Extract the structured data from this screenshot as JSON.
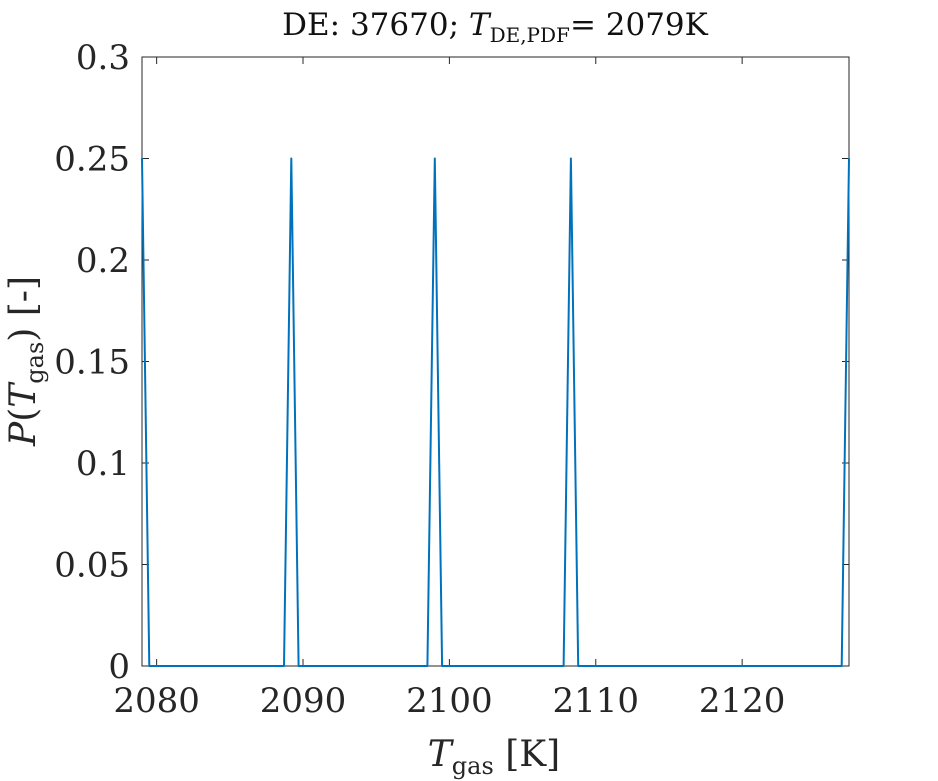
{
  "chart_data": {
    "type": "line",
    "title": {
      "prefix": "DE: 37670; ",
      "var": "T",
      "var_sub": "DE,PDF",
      "suffix": "= 2079K"
    },
    "xlabel": {
      "var": "T",
      "sub": "gas",
      "unit": " [K]"
    },
    "ylabel": {
      "func": "P(",
      "var": "T",
      "sub": "gas",
      "close": ") [-]"
    },
    "xlim": [
      2079,
      2127.3
    ],
    "ylim": [
      0,
      0.3
    ],
    "xticks": [
      2080,
      2090,
      2100,
      2110,
      2120
    ],
    "xtick_labels": [
      "2080",
      "2090",
      "2100",
      "2110",
      "2120"
    ],
    "yticks": [
      0,
      0.05,
      0.1,
      0.15,
      0.2,
      0.25,
      0.3
    ],
    "ytick_labels": [
      "0",
      "0.05",
      "0.1",
      "0.15",
      "0.2",
      "0.25",
      "0.3"
    ],
    "grid": false,
    "series": [
      {
        "color": "#0072BD",
        "x": [
          2079.0,
          2079.5,
          2088.7,
          2089.2,
          2089.7,
          2098.5,
          2099.0,
          2099.5,
          2107.8,
          2108.3,
          2108.8,
          2126.8,
          2127.3
        ],
        "y": [
          0.25,
          0,
          0,
          0.25,
          0,
          0,
          0.25,
          0,
          0,
          0.25,
          0,
          0,
          0.25
        ]
      }
    ]
  }
}
